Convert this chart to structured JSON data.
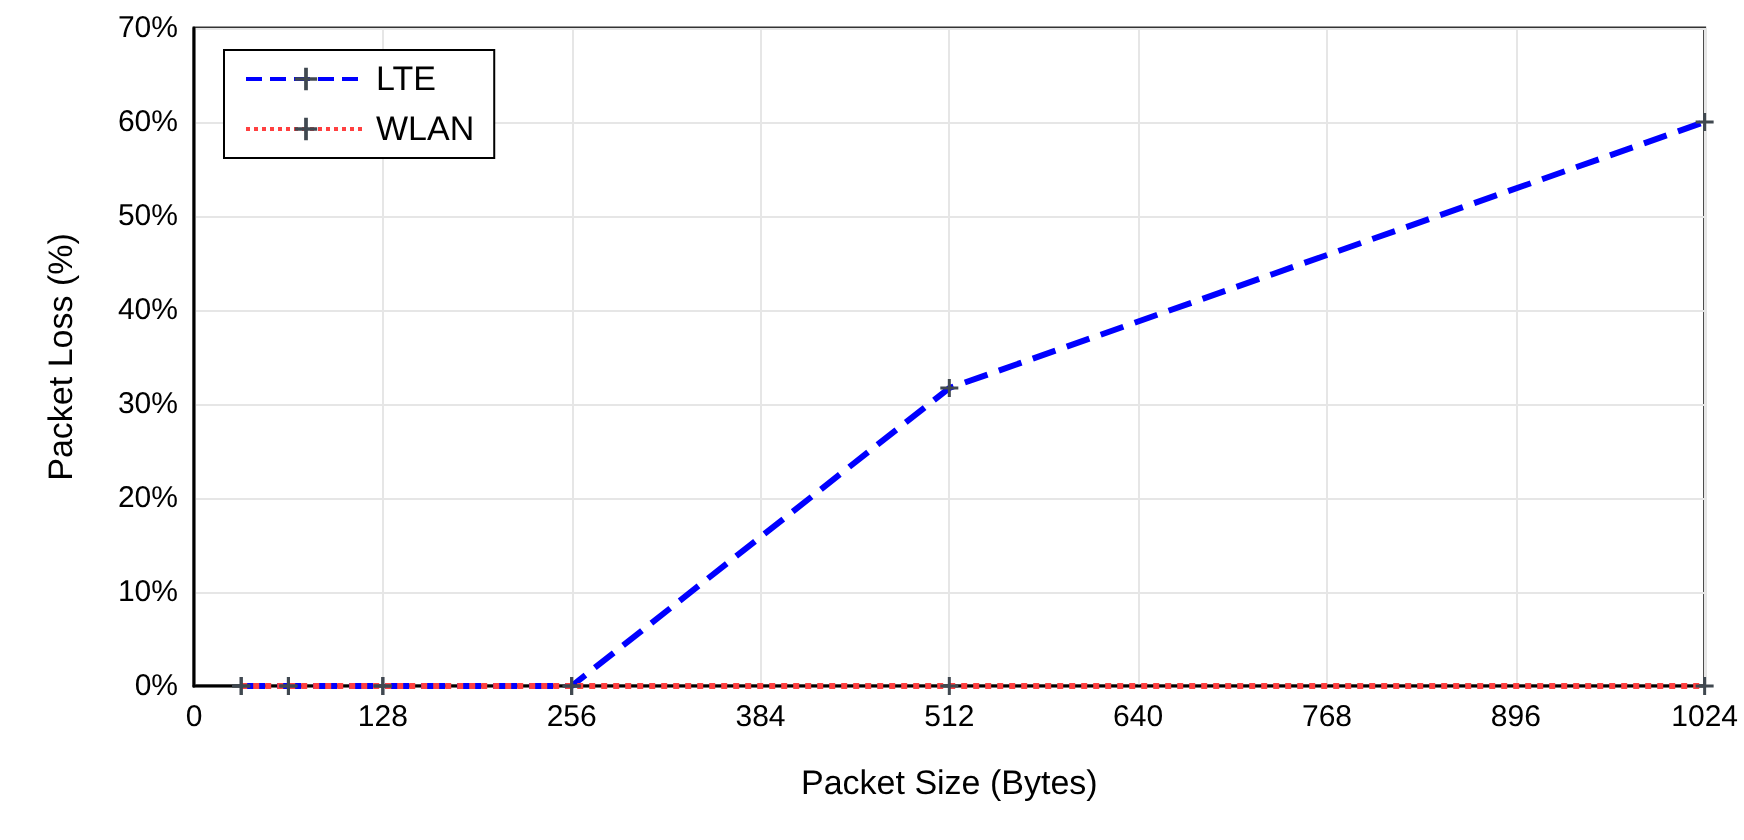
{
  "chart_data": {
    "type": "line",
    "xlabel": "Packet Size (Bytes)",
    "ylabel": "Packet Loss (%)",
    "x": [
      32,
      64,
      128,
      256,
      512,
      1024
    ],
    "series": [
      {
        "name": "LTE",
        "color": "#0000ff",
        "line_style": "dashed",
        "values": [
          0,
          0,
          0,
          0,
          31.7,
          60
        ]
      },
      {
        "name": "WLAN",
        "color": "#ff4040",
        "line_style": "dotted",
        "values": [
          0,
          0,
          0,
          0,
          0,
          0
        ]
      }
    ],
    "xlim": [
      0,
      1024
    ],
    "xticks": [
      0,
      128,
      256,
      384,
      512,
      640,
      768,
      896,
      1024
    ],
    "ylim": [
      0,
      70
    ],
    "yticks": [
      {
        "value": 0,
        "label": "0%"
      },
      {
        "value": 10,
        "label": "10%"
      },
      {
        "value": 20,
        "label": "20%"
      },
      {
        "value": 30,
        "label": "30%"
      },
      {
        "value": 40,
        "label": "40%"
      },
      {
        "value": 50,
        "label": "50%"
      },
      {
        "value": 60,
        "label": "60%"
      },
      {
        "value": 70,
        "label": "70%"
      }
    ],
    "grid": true,
    "legend": "top left",
    "marker": "cross"
  }
}
